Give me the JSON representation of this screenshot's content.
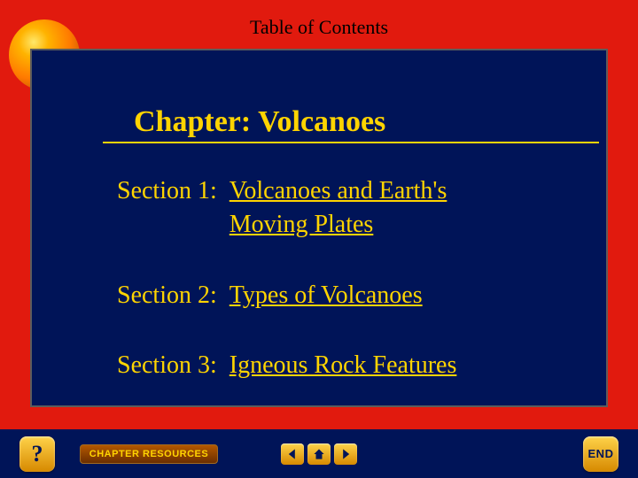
{
  "colors": {
    "outer_bg": "#e11a0e",
    "inner_bg": "#001458",
    "accent": "#ffd400",
    "sphere_gradient": [
      "#ffe86b",
      "#ffb300",
      "#ff7a00",
      "#b34a00"
    ],
    "button_gradient": [
      "#ffd34a",
      "#d68900"
    ],
    "resources_gradient": [
      "#b35700",
      "#6b2e00"
    ]
  },
  "typography": {
    "body_family": "Times New Roman",
    "title_fontsize": 22,
    "chapter_fontsize": 34,
    "section_fontsize": 28,
    "button_family": "Arial"
  },
  "header": {
    "title": "Table of Contents"
  },
  "chapter": {
    "label": "Chapter:  Volcanoes"
  },
  "sections": [
    {
      "label": "Section 1:  ",
      "link": "Volcanoes and Earth's\n Moving Plates"
    },
    {
      "label": "Section 2:  ",
      "link": "Types of Volcanoes"
    },
    {
      "label": "Section 3:  ",
      "link": "Igneous Rock Features"
    }
  ],
  "nav": {
    "help": "?",
    "resources": "CHAPTER RESOURCES",
    "end": "END"
  }
}
